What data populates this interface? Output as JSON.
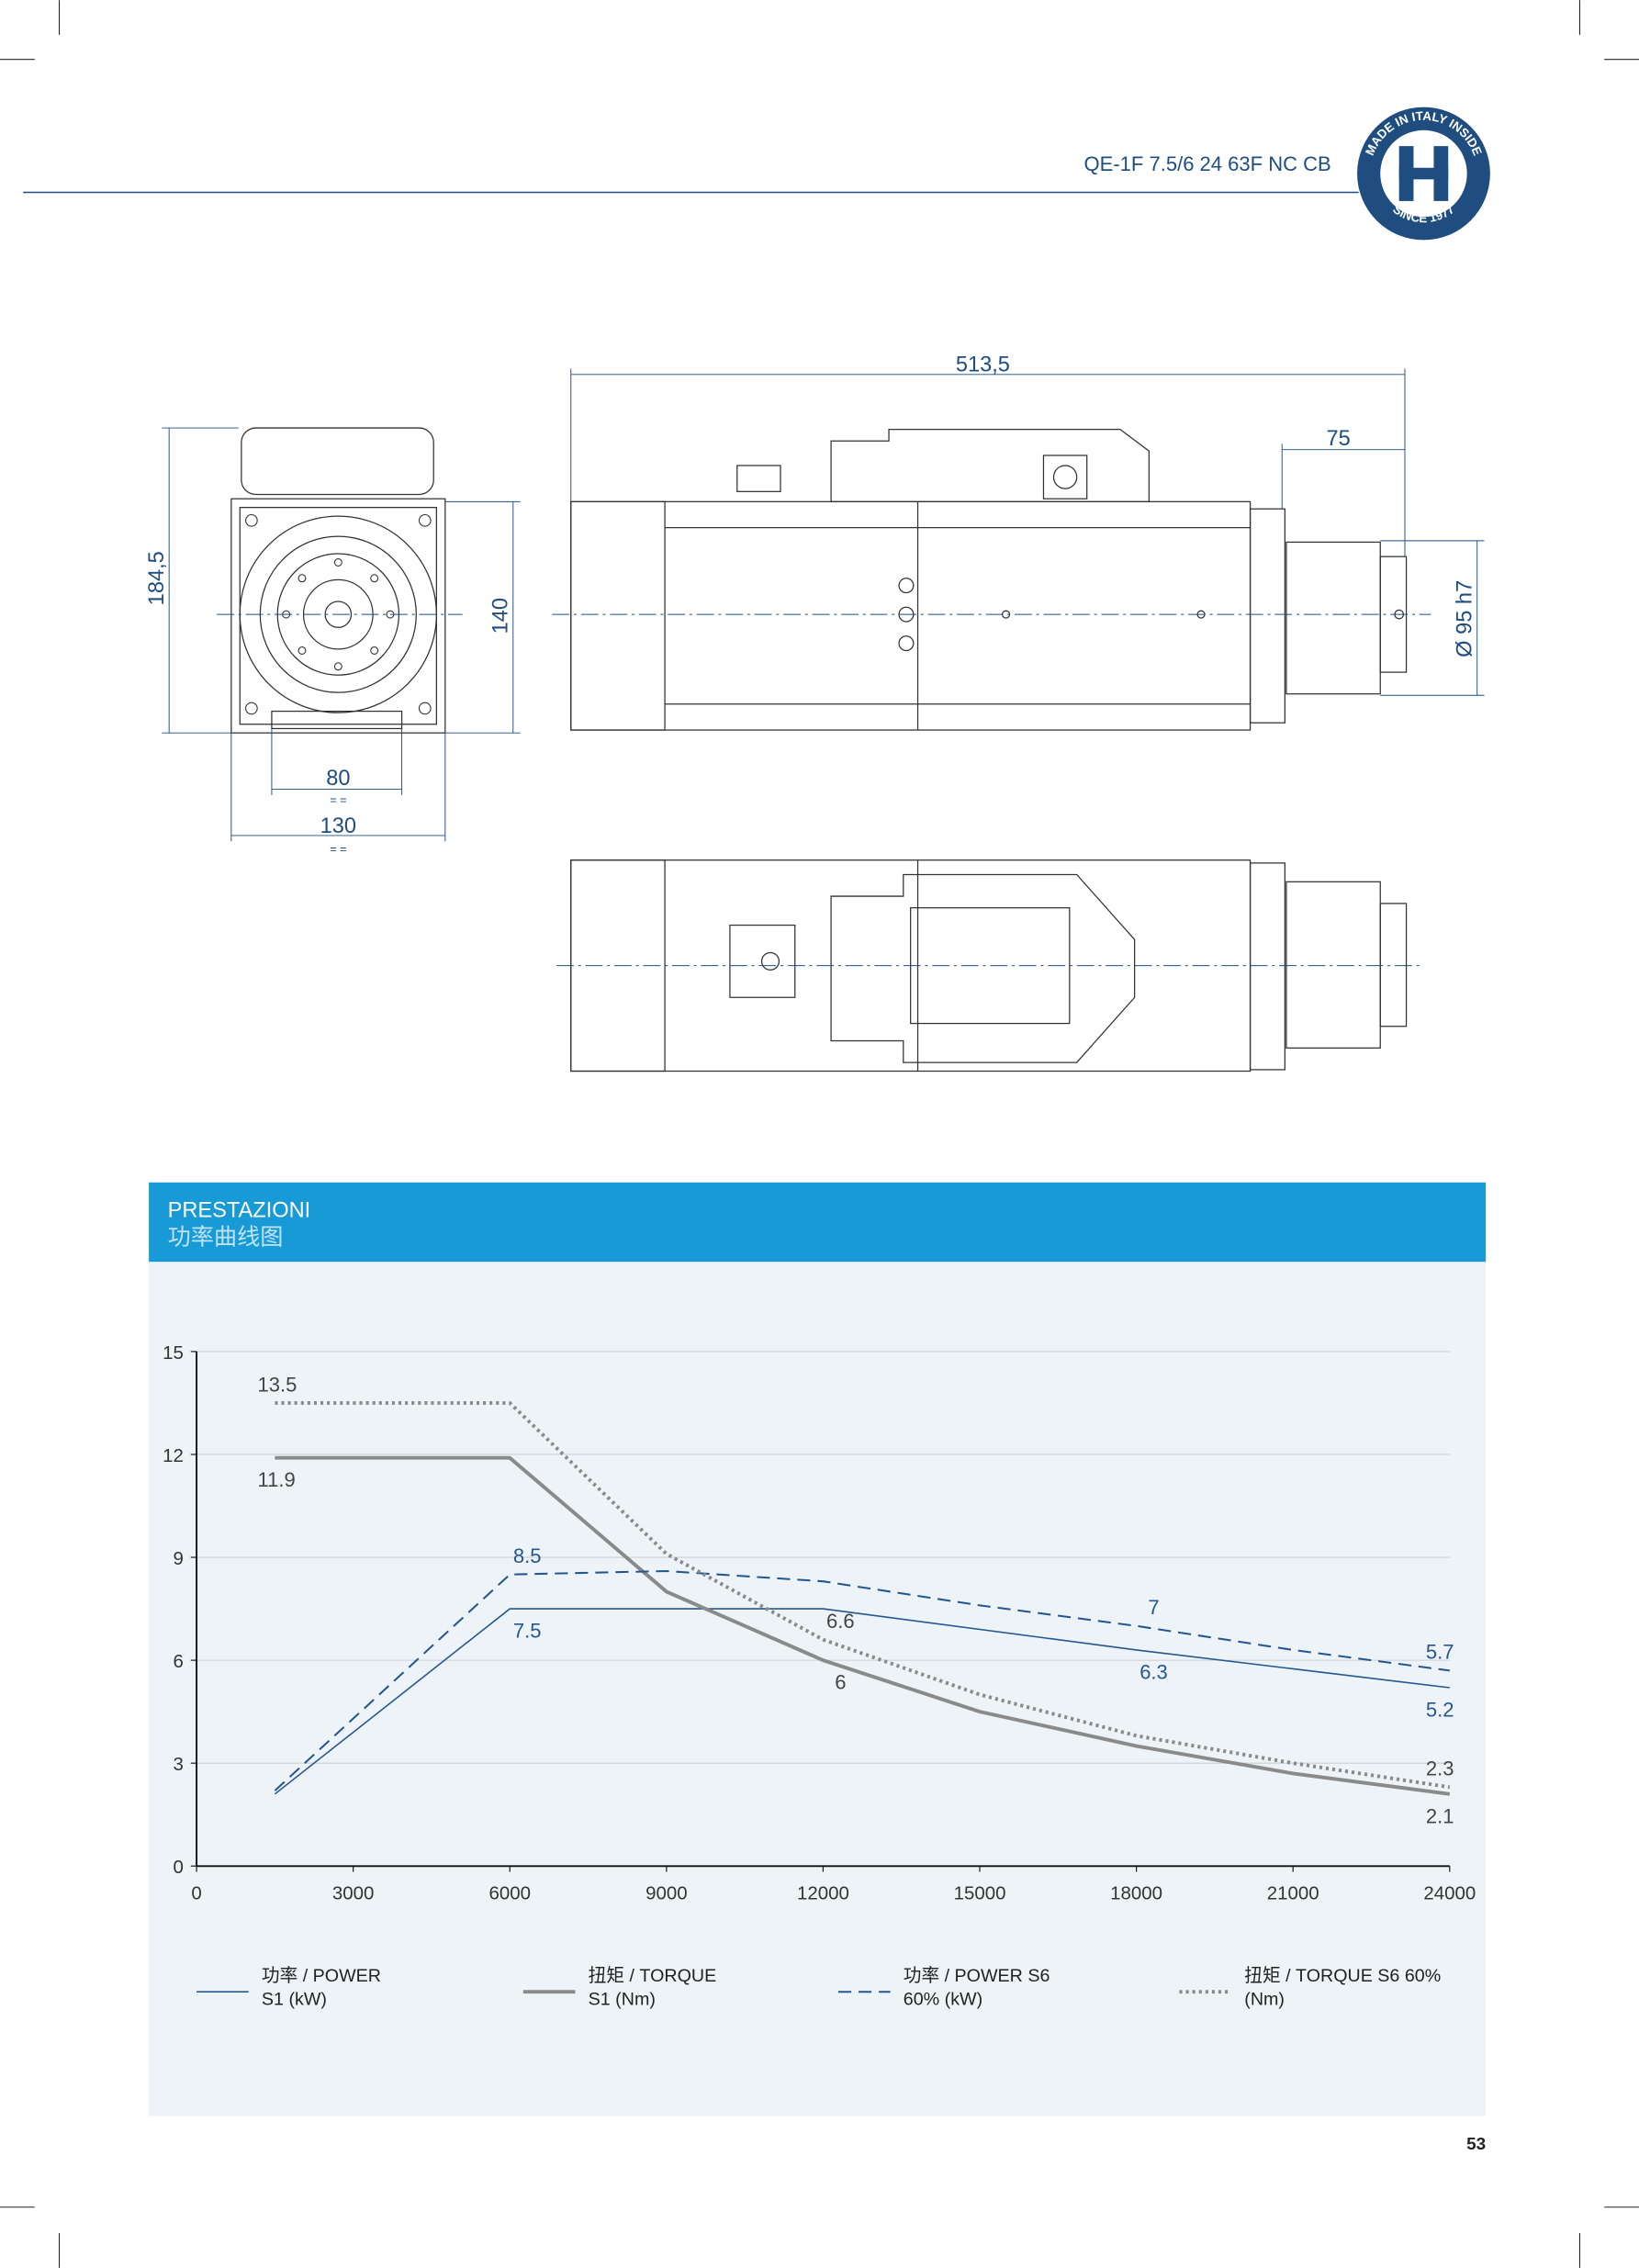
{
  "header": {
    "model": "QE-1F 7.5/6 24 63F NC CB",
    "logo_top": "MADE IN ITALY INSIDE",
    "logo_bottom": "SINCE 1977"
  },
  "drawing": {
    "length": "513,5",
    "nose": "75",
    "height": "184,5",
    "flange_height": "140",
    "feet_inner": "80",
    "feet_outer": "130",
    "symmetric": "= =",
    "diameter": "Ø 95 h7"
  },
  "section": {
    "title": "PRESTAZIONI",
    "subtitle": "功率曲线图"
  },
  "chart_data": {
    "type": "line",
    "x": [
      1500,
      6000,
      9000,
      12000,
      15000,
      18000,
      21000,
      24000
    ],
    "xlim": [
      0,
      24000
    ],
    "xticks": [
      0,
      3000,
      6000,
      9000,
      12000,
      15000,
      18000,
      21000,
      24000
    ],
    "ylim": [
      0,
      15
    ],
    "yticks": [
      0,
      3,
      6,
      9,
      12,
      15
    ],
    "grid": true,
    "series": [
      {
        "name": "功率 / POWER S1 (kW)",
        "color": "#24578f",
        "style": "solid",
        "width": 1,
        "values": [
          2.1,
          7.5,
          7.5,
          7.5,
          6.9,
          6.3,
          5.75,
          5.2
        ],
        "value_labels": [
          null,
          "7.5",
          null,
          null,
          null,
          "6.3",
          null,
          "5.2"
        ]
      },
      {
        "name": "扭矩 / TORQUE S1 (Nm)",
        "color": "#8a8a8a",
        "style": "solid",
        "width": 2.5,
        "values": [
          11.9,
          11.9,
          8.0,
          6.0,
          4.5,
          3.5,
          2.7,
          2.1
        ],
        "value_labels": [
          "11.9",
          null,
          null,
          "6",
          null,
          null,
          null,
          "2.1"
        ]
      },
      {
        "name": "功率 / POWER S6 60% (kW)",
        "color": "#24578f",
        "style": "dashed",
        "width": 1.3,
        "values": [
          2.2,
          8.5,
          8.6,
          8.3,
          7.6,
          7.0,
          6.3,
          5.7
        ],
        "value_labels": [
          null,
          "8.5",
          null,
          null,
          null,
          "7",
          null,
          "5.7"
        ]
      },
      {
        "name": "扭矩 / TORQUE S6 60% (Nm)",
        "color": "#8a8a8a",
        "style": "dotted",
        "width": 2.5,
        "values": [
          13.5,
          13.5,
          9.1,
          6.6,
          5.0,
          3.8,
          3.0,
          2.3
        ],
        "value_labels": [
          "13.5",
          null,
          null,
          "6.6",
          null,
          null,
          null,
          "2.3"
        ]
      }
    ]
  },
  "footer": {
    "page": "53"
  }
}
